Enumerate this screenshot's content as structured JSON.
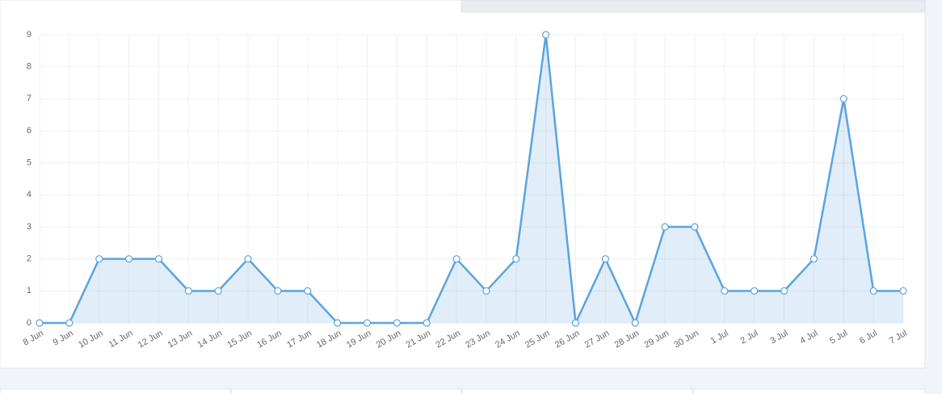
{
  "chart_data": {
    "type": "line",
    "categories": [
      "8 Jun",
      "9 Jun",
      "10 Jun",
      "11 Jun",
      "12 Jun",
      "13 Jun",
      "14 Jun",
      "15 Jun",
      "16 Jun",
      "17 Jun",
      "18 Jun",
      "19 Jun",
      "20 Jun",
      "21 Jun",
      "22 Jun",
      "23 Jun",
      "24 Jun",
      "25 Jun",
      "26 Jun",
      "27 Jun",
      "28 Jun",
      "29 Jun",
      "30 Jun",
      "1 Jul",
      "2 Jul",
      "3 Jul",
      "4 Jul",
      "5 Jul",
      "6 Jul",
      "7 Jul"
    ],
    "values": [
      0,
      0,
      2,
      2,
      2,
      1,
      1,
      2,
      1,
      1,
      0,
      0,
      0,
      0,
      2,
      1,
      2,
      9,
      0,
      2,
      0,
      3,
      3,
      1,
      1,
      1,
      2,
      7,
      1,
      1
    ],
    "color": "#5ba3e0",
    "ylim": [
      0,
      9
    ],
    "yticks": [
      0,
      1,
      2,
      3,
      4,
      5,
      6,
      7,
      8,
      9
    ],
    "grid": true
  }
}
